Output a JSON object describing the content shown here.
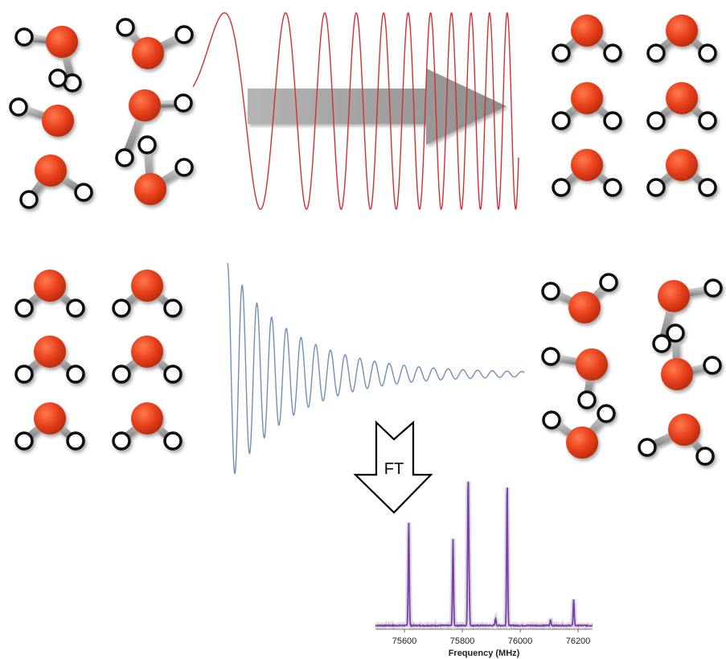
{
  "figure": {
    "ft_label": "FT",
    "colors": {
      "oxygen": "#e8401c",
      "hydrogen": "#ffffff",
      "chirp": "#d32f2f",
      "decay": "#6f8fb8",
      "spectrum": "#7b3fb0",
      "arrow": "#8a8a8a"
    }
  },
  "chart_data": {
    "type": "line",
    "xlabel": "Frequency (MHz)",
    "ylabel": "",
    "xlim": [
      75500,
      76250
    ],
    "x_ticks": [
      "75600",
      "75800",
      "76000",
      "76200"
    ],
    "peaks": [
      {
        "x": 75615,
        "height": 0.72
      },
      {
        "x": 75768,
        "height": 0.6
      },
      {
        "x": 75820,
        "height": 0.94
      },
      {
        "x": 75823,
        "height": 0.32
      },
      {
        "x": 75955,
        "height": 1.0
      },
      {
        "x": 76185,
        "height": 0.18
      },
      {
        "x": 75915,
        "height": 0.05
      },
      {
        "x": 76105,
        "height": 0.04
      }
    ]
  }
}
